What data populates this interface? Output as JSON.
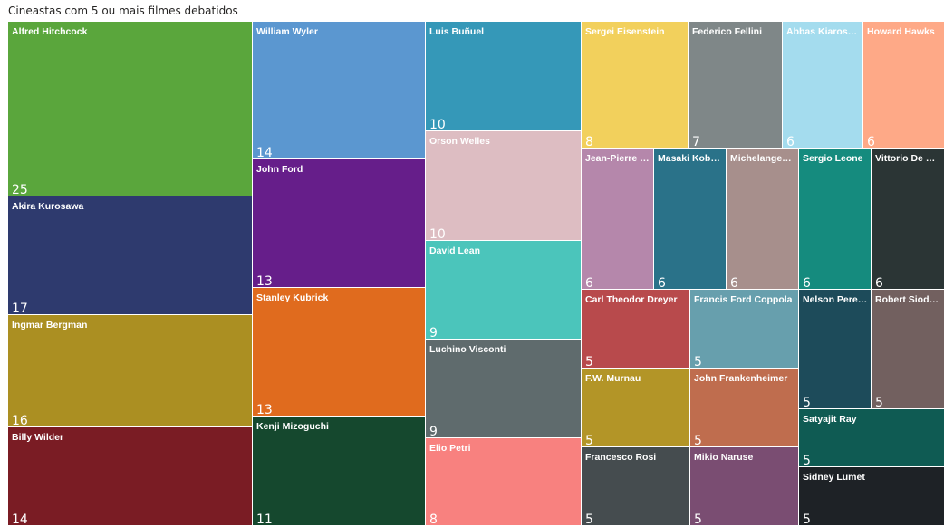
{
  "chart_data": {
    "type": "treemap",
    "title": "Cineastas com 5 ou mais filmes debatidos",
    "categories": [
      "Alfred Hitchcock",
      "Akira Kurosawa",
      "Ingmar Bergman",
      "Billy Wilder",
      "William Wyler",
      "John Ford",
      "Stanley Kubrick",
      "Kenji Mizoguchi",
      "Luis Buñuel",
      "Orson Welles",
      "David Lean",
      "Luchino Visconti",
      "Elio Petri",
      "Sergei Eisenstein",
      "Federico Fellini",
      "Abbas Kiaros…",
      "Howard Hawks",
      "Jean-Pierre …",
      "Masaki Kob…",
      "Michelange…",
      "Sergio Leone",
      "Vittorio De …",
      "Carl Theodor Dreyer",
      "Francis Ford Coppola",
      "F.W. Murnau",
      "John Frankenheimer",
      "Francesco Rosi",
      "Mikio Naruse",
      "Nelson Pere…",
      "Robert Siod…",
      "Satyajit Ray",
      "Sidney Lumet"
    ],
    "values": [
      25,
      17,
      16,
      14,
      14,
      13,
      13,
      11,
      10,
      10,
      9,
      9,
      8,
      8,
      7,
      6,
      6,
      6,
      6,
      6,
      6,
      6,
      5,
      5,
      5,
      5,
      5,
      5,
      5,
      5,
      5,
      5
    ],
    "colors": [
      "#5aa63c",
      "#2e3a6e",
      "#ab8f22",
      "#7a1c24",
      "#5b97d0",
      "#661e8a",
      "#e06b1e",
      "#15482e",
      "#3598b8",
      "#ddbdc2",
      "#4bc5bb",
      "#5f6b6d",
      "#f8817f",
      "#f2d05c",
      "#7f8788",
      "#a4dcee",
      "#fea987",
      "#b587ab",
      "#2a7289",
      "#a78f8c",
      "#158b7e",
      "#2b3535",
      "#b84a4c",
      "#679fad",
      "#b39527",
      "#bf6d4e",
      "#454c4f",
      "#7a4d72",
      "#1d4b5a",
      "#72605f",
      "#0f5b53",
      "#1e2226"
    ]
  }
}
